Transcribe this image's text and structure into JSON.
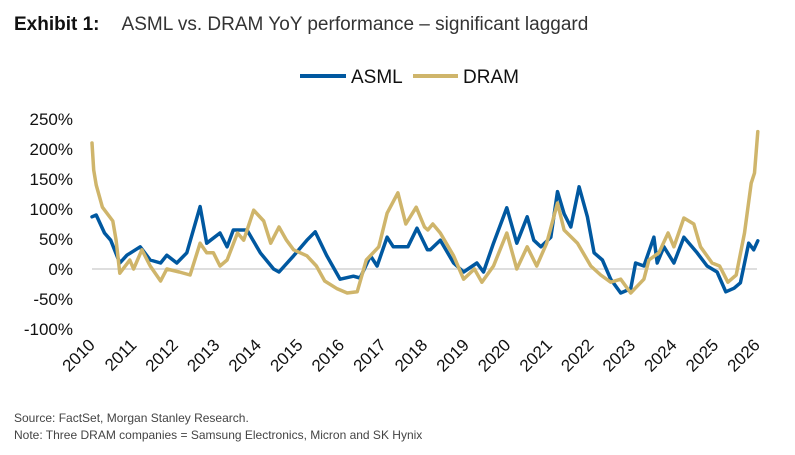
{
  "header": {
    "exhibit": "Exhibit 1:",
    "title": "ASML vs. DRAM YoY performance – significant laggard"
  },
  "footer": {
    "source": "Source: FactSet, Morgan Stanley Research.",
    "note": "Note: Three DRAM companies = Samsung Electronics, Micron and SK Hynix"
  },
  "chart_data": {
    "type": "line",
    "title": "ASML vs. DRAM YoY performance – significant laggard",
    "xlabel": "",
    "ylabel": "",
    "xlim": [
      2010,
      2026
    ],
    "ylim": [
      -100,
      250
    ],
    "yticks": [
      250,
      200,
      150,
      100,
      50,
      0,
      -50,
      -100
    ],
    "ytick_labels": [
      "250%",
      "200%",
      "150%",
      "100%",
      "50%",
      "0%",
      "-50%",
      "-100%"
    ],
    "xticks": [
      "2010",
      "2011",
      "2012",
      "2013",
      "2014",
      "2015",
      "2016",
      "2017",
      "2018",
      "2019",
      "2020",
      "2021",
      "2022",
      "2023",
      "2024",
      "2025",
      "2026"
    ],
    "legend": {
      "placement": "top-center"
    },
    "grid": false,
    "series": [
      {
        "name": "ASML",
        "color": "#0058a0",
        "points": [
          [
            2010.0,
            87
          ],
          [
            2010.1,
            90
          ],
          [
            2010.3,
            60
          ],
          [
            2010.45,
            48
          ],
          [
            2010.67,
            10
          ],
          [
            2010.84,
            23
          ],
          [
            2011.16,
            37
          ],
          [
            2011.4,
            15
          ],
          [
            2011.65,
            10
          ],
          [
            2011.8,
            23
          ],
          [
            2012.04,
            10
          ],
          [
            2012.28,
            27
          ],
          [
            2012.6,
            104
          ],
          [
            2012.76,
            43
          ],
          [
            2013.08,
            60
          ],
          [
            2013.25,
            37
          ],
          [
            2013.4,
            65
          ],
          [
            2013.73,
            65
          ],
          [
            2014.05,
            27
          ],
          [
            2014.37,
            0
          ],
          [
            2014.5,
            -5
          ],
          [
            2014.85,
            22
          ],
          [
            2015.17,
            48
          ],
          [
            2015.37,
            62
          ],
          [
            2015.65,
            22
          ],
          [
            2015.97,
            -17
          ],
          [
            2016.29,
            -12
          ],
          [
            2016.45,
            -15
          ],
          [
            2016.7,
            22
          ],
          [
            2016.86,
            5
          ],
          [
            2017.1,
            53
          ],
          [
            2017.25,
            37
          ],
          [
            2017.6,
            37
          ],
          [
            2017.82,
            68
          ],
          [
            2018.07,
            32
          ],
          [
            2018.14,
            32
          ],
          [
            2018.38,
            48
          ],
          [
            2018.7,
            10
          ],
          [
            2018.94,
            -5
          ],
          [
            2019.26,
            10
          ],
          [
            2019.42,
            -5
          ],
          [
            2019.66,
            43
          ],
          [
            2019.98,
            102
          ],
          [
            2020.22,
            43
          ],
          [
            2020.47,
            87
          ],
          [
            2020.63,
            48
          ],
          [
            2020.8,
            37
          ],
          [
            2021.04,
            53
          ],
          [
            2021.2,
            129
          ],
          [
            2021.36,
            92
          ],
          [
            2021.52,
            70
          ],
          [
            2021.72,
            137
          ],
          [
            2021.92,
            87
          ],
          [
            2022.08,
            27
          ],
          [
            2022.28,
            15
          ],
          [
            2022.48,
            -17
          ],
          [
            2022.72,
            -40
          ],
          [
            2022.96,
            -33
          ],
          [
            2023.08,
            10
          ],
          [
            2023.28,
            5
          ],
          [
            2023.52,
            53
          ],
          [
            2023.6,
            10
          ],
          [
            2023.76,
            37
          ],
          [
            2024.0,
            10
          ],
          [
            2024.24,
            53
          ],
          [
            2024.56,
            27
          ],
          [
            2024.8,
            5
          ],
          [
            2025.04,
            -5
          ],
          [
            2025.25,
            -38
          ],
          [
            2025.45,
            -32
          ],
          [
            2025.6,
            -23
          ],
          [
            2025.8,
            43
          ],
          [
            2025.92,
            32
          ],
          [
            2026.02,
            47
          ]
        ]
      },
      {
        "name": "DRAM",
        "color": "#cfb56b",
        "points": [
          [
            2010.0,
            210
          ],
          [
            2010.04,
            165
          ],
          [
            2010.1,
            140
          ],
          [
            2010.25,
            103
          ],
          [
            2010.5,
            80
          ],
          [
            2010.58,
            48
          ],
          [
            2010.67,
            -7
          ],
          [
            2010.91,
            15
          ],
          [
            2011.0,
            0
          ],
          [
            2011.2,
            32
          ],
          [
            2011.4,
            5
          ],
          [
            2011.65,
            -20
          ],
          [
            2011.8,
            0
          ],
          [
            2012.1,
            -5
          ],
          [
            2012.36,
            -10
          ],
          [
            2012.6,
            43
          ],
          [
            2012.76,
            27
          ],
          [
            2012.92,
            27
          ],
          [
            2013.08,
            5
          ],
          [
            2013.25,
            15
          ],
          [
            2013.5,
            60
          ],
          [
            2013.65,
            48
          ],
          [
            2013.89,
            98
          ],
          [
            2014.13,
            80
          ],
          [
            2014.3,
            43
          ],
          [
            2014.5,
            70
          ],
          [
            2014.68,
            48
          ],
          [
            2014.85,
            32
          ],
          [
            2015.17,
            22
          ],
          [
            2015.4,
            5
          ],
          [
            2015.6,
            -20
          ],
          [
            2015.9,
            -33
          ],
          [
            2016.14,
            -40
          ],
          [
            2016.38,
            -38
          ],
          [
            2016.6,
            15
          ],
          [
            2016.9,
            37
          ],
          [
            2017.1,
            93
          ],
          [
            2017.36,
            127
          ],
          [
            2017.55,
            75
          ],
          [
            2017.8,
            103
          ],
          [
            2018.0,
            70
          ],
          [
            2018.08,
            65
          ],
          [
            2018.2,
            75
          ],
          [
            2018.38,
            60
          ],
          [
            2018.7,
            22
          ],
          [
            2018.94,
            -17
          ],
          [
            2019.2,
            0
          ],
          [
            2019.38,
            -22
          ],
          [
            2019.66,
            5
          ],
          [
            2019.98,
            60
          ],
          [
            2020.22,
            0
          ],
          [
            2020.47,
            37
          ],
          [
            2020.7,
            5
          ],
          [
            2020.94,
            43
          ],
          [
            2021.2,
            110
          ],
          [
            2021.36,
            65
          ],
          [
            2021.68,
            43
          ],
          [
            2022.0,
            5
          ],
          [
            2022.24,
            -10
          ],
          [
            2022.48,
            -22
          ],
          [
            2022.72,
            -17
          ],
          [
            2022.96,
            -40
          ],
          [
            2023.28,
            -17
          ],
          [
            2023.4,
            15
          ],
          [
            2023.64,
            27
          ],
          [
            2023.86,
            60
          ],
          [
            2024.0,
            37
          ],
          [
            2024.24,
            85
          ],
          [
            2024.48,
            75
          ],
          [
            2024.64,
            37
          ],
          [
            2024.92,
            10
          ],
          [
            2025.1,
            5
          ],
          [
            2025.3,
            -22
          ],
          [
            2025.5,
            -10
          ],
          [
            2025.7,
            60
          ],
          [
            2025.86,
            143
          ],
          [
            2025.94,
            160
          ],
          [
            2026.02,
            229
          ]
        ]
      }
    ]
  }
}
